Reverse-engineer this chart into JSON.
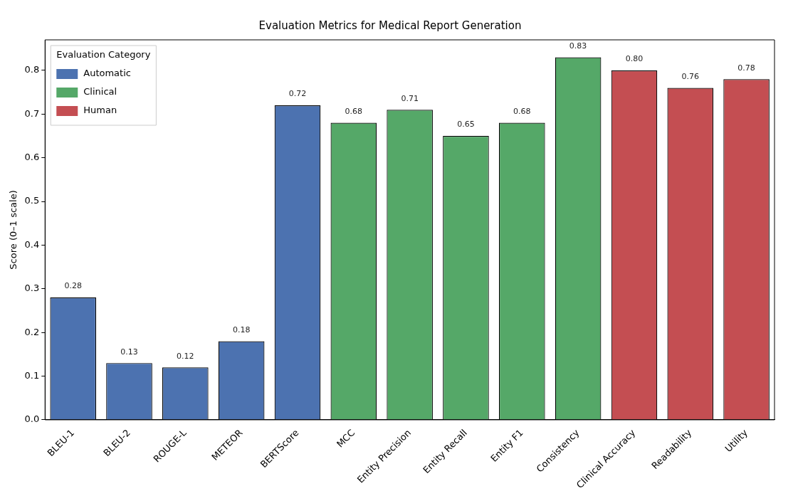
{
  "chart_data": {
    "type": "bar",
    "title": "Evaluation Metrics for Medical Report Generation",
    "ylabel": "Score (0–1 scale)",
    "legend_title": "Evaluation Category",
    "categories": [
      "BLEU-1",
      "BLEU-2",
      "ROUGE-L",
      "METEOR",
      "BERTScore",
      "MCC",
      "Entity Precision",
      "Entity Recall",
      "Entity F1",
      "Consistency",
      "Clinical Accuracy",
      "Readability",
      "Utility"
    ],
    "series": [
      {
        "name": "Automatic",
        "color": "#4c72b0",
        "values": [
          0.28,
          0.13,
          0.12,
          0.18,
          0.72,
          null,
          null,
          null,
          null,
          null,
          null,
          null,
          null
        ],
        "value_labels": [
          "0.28",
          "0.13",
          "0.12",
          "0.18",
          "0.72",
          null,
          null,
          null,
          null,
          null,
          null,
          null,
          null
        ]
      },
      {
        "name": "Clinical",
        "color": "#55a868",
        "values": [
          null,
          null,
          null,
          null,
          null,
          0.68,
          0.71,
          0.65,
          0.68,
          0.83,
          null,
          null,
          null
        ],
        "value_labels": [
          null,
          null,
          null,
          null,
          null,
          "0.68",
          "0.71",
          "0.65",
          "0.68",
          "0.83",
          null,
          null,
          null
        ]
      },
      {
        "name": "Human",
        "color": "#c44e52",
        "values": [
          null,
          null,
          null,
          null,
          null,
          null,
          null,
          null,
          null,
          null,
          0.8,
          0.76,
          0.78
        ],
        "value_labels": [
          null,
          null,
          null,
          null,
          null,
          null,
          null,
          null,
          null,
          null,
          "0.80",
          "0.76",
          "0.78"
        ]
      }
    ],
    "ylim": [
      0,
      0.87
    ],
    "yticks": [
      {
        "value": 0,
        "label": "0.0"
      },
      {
        "value": 0.1,
        "label": "0.1"
      },
      {
        "value": 0.2,
        "label": "0.2"
      },
      {
        "value": 0.3,
        "label": "0.3"
      },
      {
        "value": 0.4,
        "label": "0.4"
      },
      {
        "value": 0.5,
        "label": "0.5"
      },
      {
        "value": 0.6,
        "label": "0.6"
      },
      {
        "value": 0.7,
        "label": "0.7"
      },
      {
        "value": 0.8,
        "label": "0.8"
      }
    ],
    "grid": false,
    "legend": "top left"
  }
}
